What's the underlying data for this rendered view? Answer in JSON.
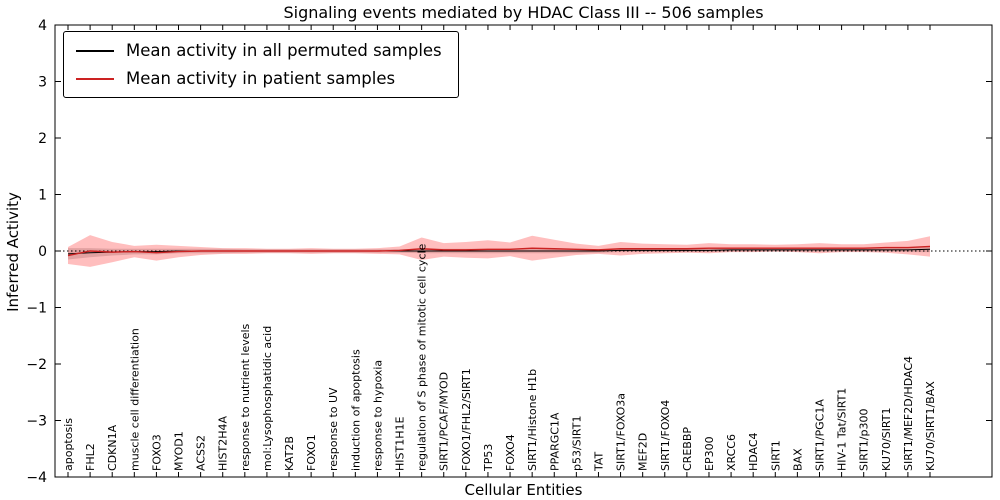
{
  "figure": {
    "title": "Signaling events mediated by HDAC Class III -- 506 samples",
    "xlabel": "Cellular Entities",
    "ylabel": "Inferred Activity"
  },
  "chart_data": {
    "type": "line",
    "title": "Signaling events mediated by HDAC Class III -- 506 samples",
    "xlabel": "Cellular Entities",
    "ylabel": "Inferred Activity",
    "ylim": [
      -4,
      4
    ],
    "yticks": [
      -4,
      -3,
      -2,
      -1,
      0,
      1,
      2,
      3,
      4
    ],
    "grid": false,
    "legend_position": "upper left",
    "zero_reference_line": 0,
    "categories": [
      "apoptosis",
      "FHL2",
      "CDKN1A",
      "muscle cell differentiation",
      "FOXO3",
      "MYOD1",
      "ACSS2",
      "HIST2H4A",
      "response to nutrient levels",
      "mol:Lysophosphatidic acid",
      "KAT2B",
      "FOXO1",
      "response to UV",
      "induction of apoptosis",
      "response to hypoxia",
      "HIST1H1E",
      "regulation of S phase of mitotic cell cycle",
      "SIRT1/PCAF/MYOD",
      "FOXO1/FHL2/SIRT1",
      "TP53",
      "FOXO4",
      "SIRT1/Histone H1b",
      "PPARGC1A",
      "p53/SIRT1",
      "TAT",
      "SIRT1/FOXO3a",
      "MEF2D",
      "SIRT1/FOXO4",
      "CREBBP",
      "EP300",
      "XRCC6",
      "HDAC4",
      "SIRT1",
      "BAX",
      "SIRT1/PGC1A",
      "HIV-1 Tat/SIRT1",
      "SIRT1/p300",
      "KU70/SIRT1",
      "SIRT1/MEF2D/HDAC4",
      "KU70/SIRT1/BAX"
    ],
    "series": [
      {
        "name": "Mean activity in all permuted samples",
        "color": "#000000",
        "band_color": "rgba(130,130,130,0.35)",
        "values": [
          -0.05,
          -0.03,
          -0.02,
          -0.01,
          -0.01,
          0,
          0,
          0,
          0,
          0,
          0,
          0,
          0,
          0,
          0,
          0,
          0,
          0,
          0,
          0,
          0,
          0,
          0,
          0,
          0,
          0.01,
          0.01,
          0.01,
          0.01,
          0.01,
          0.02,
          0.02,
          0.02,
          0.02,
          0.02,
          0.02,
          0.02,
          0.02,
          0.02,
          0.03
        ],
        "band": [
          0.1,
          0.08,
          0.06,
          0.05,
          0.05,
          0.04,
          0.04,
          0.04,
          0.03,
          0.03,
          0.03,
          0.03,
          0.03,
          0.03,
          0.03,
          0.03,
          0.04,
          0.04,
          0.04,
          0.04,
          0.04,
          0.04,
          0.04,
          0.04,
          0.03,
          0.03,
          0.03,
          0.03,
          0.03,
          0.03,
          0.03,
          0.03,
          0.03,
          0.03,
          0.03,
          0.03,
          0.03,
          0.03,
          0.04,
          0.05
        ]
      },
      {
        "name": "Mean activity in patient samples",
        "color": "#cc2222",
        "band_color": "rgba(255,70,70,0.35)",
        "values": [
          -0.08,
          0.0,
          -0.02,
          -0.01,
          -0.03,
          -0.01,
          0,
          0,
          0,
          0,
          0,
          0,
          0,
          0,
          0,
          0.01,
          0.04,
          0.02,
          0.02,
          0.03,
          0.03,
          0.05,
          0.04,
          0.03,
          0.02,
          0.04,
          0.04,
          0.04,
          0.04,
          0.05,
          0.05,
          0.05,
          0.05,
          0.05,
          0.05,
          0.05,
          0.05,
          0.06,
          0.06,
          0.08
        ],
        "band": [
          0.15,
          0.28,
          0.18,
          0.1,
          0.14,
          0.1,
          0.07,
          0.05,
          0.05,
          0.04,
          0.04,
          0.05,
          0.04,
          0.04,
          0.05,
          0.07,
          0.2,
          0.12,
          0.14,
          0.16,
          0.12,
          0.22,
          0.16,
          0.1,
          0.07,
          0.12,
          0.09,
          0.08,
          0.07,
          0.09,
          0.07,
          0.07,
          0.06,
          0.07,
          0.09,
          0.07,
          0.07,
          0.09,
          0.12,
          0.18
        ]
      }
    ]
  }
}
